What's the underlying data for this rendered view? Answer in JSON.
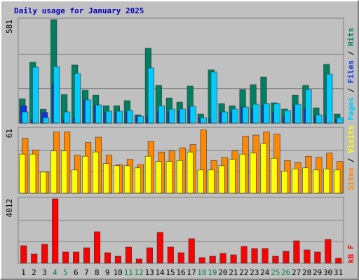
{
  "title": "Daily usage for January 2025",
  "chart_data": [
    {
      "type": "bar",
      "ylim": [
        0,
        581
      ],
      "yticks": [
        581
      ],
      "grid_divisions": 3,
      "legend_separator": " / ",
      "series": [
        {
          "name": "Pages",
          "color": "#00ccff",
          "values": [
            63,
            314,
            31,
            318,
            63,
            279,
            130,
            102,
            67,
            67,
            71,
            39,
            310,
            98,
            79,
            79,
            95,
            31,
            287,
            63,
            79,
            90,
            106,
            110,
            110,
            71,
            106,
            189,
            47,
            275,
            31
          ]
        },
        {
          "name": "Files",
          "color": "#1030e8",
          "values": [
            98,
            20,
            60,
            220,
            20,
            30,
            130,
            100,
            60,
            60,
            60,
            40,
            40,
            60,
            60,
            70,
            90,
            30,
            30,
            60,
            60,
            90,
            80,
            100,
            60,
            40,
            100,
            80,
            40,
            40,
            20
          ]
        },
        {
          "name": "Hits",
          "color": "#008060",
          "values": [
            137,
            342,
            78,
            581,
            161,
            326,
            185,
            157,
            98,
            98,
            126,
            47,
            420,
            212,
            141,
            118,
            208,
            51,
            299,
            110,
            98,
            189,
            216,
            259,
            114,
            79,
            157,
            212,
            86,
            330,
            51
          ]
        }
      ]
    },
    {
      "type": "bar",
      "ylim": [
        0,
        61
      ],
      "yticks": [
        61
      ],
      "grid_divisions": 3,
      "legend_separator": " / ",
      "series": [
        {
          "name": "Sites",
          "color": "#ff8800",
          "values": [
            52,
            41,
            20,
            58,
            58,
            36,
            48,
            53,
            36,
            27,
            32,
            27,
            49,
            39,
            40,
            43,
            46,
            60,
            31,
            34,
            40,
            54,
            55,
            58,
            56,
            31,
            29,
            35,
            34,
            38,
            30
          ]
        },
        {
          "name": "Visits",
          "color": "#ffff00",
          "values": [
            37,
            37,
            20,
            40,
            40,
            22,
            35,
            39,
            28,
            26,
            26,
            24,
            35,
            30,
            30,
            31,
            39,
            22,
            22,
            26,
            32,
            37,
            38,
            47,
            33,
            21,
            23,
            24,
            22,
            23,
            22
          ]
        }
      ]
    },
    {
      "type": "bar",
      "ylim": [
        0,
        4012
      ],
      "yticks": [
        4012
      ],
      "grid_divisions": 3,
      "categories": [
        "1",
        "2",
        "3",
        "4",
        "5",
        "6",
        "7",
        "8",
        "9",
        "10",
        "11",
        "12",
        "13",
        "14",
        "15",
        "16",
        "17",
        "18",
        "19",
        "20",
        "21",
        "22",
        "23",
        "24",
        "25",
        "26",
        "27",
        "28",
        "29",
        "30",
        "31"
      ],
      "category_colors": [
        "#000",
        "#000",
        "#000",
        "#008040",
        "#008040",
        "#000",
        "#000",
        "#000",
        "#000",
        "#000",
        "#008040",
        "#008040",
        "#000",
        "#000",
        "#000",
        "#000",
        "#000",
        "#008040",
        "#008040",
        "#000",
        "#000",
        "#000",
        "#000",
        "#000",
        "#008040",
        "#008040",
        "#000",
        "#000",
        "#000",
        "#000",
        "#000"
      ],
      "series": [
        {
          "name": "kB F",
          "color": "#ff0000",
          "values": [
            1090,
            567,
            1177,
            4012,
            698,
            698,
            960,
            1962,
            654,
            436,
            1003,
            262,
            960,
            1919,
            1003,
            654,
            1526,
            349,
            436,
            610,
            523,
            1047,
            916,
            916,
            436,
            741,
            1395,
            829,
            698,
            1483,
            305
          ]
        }
      ]
    }
  ]
}
